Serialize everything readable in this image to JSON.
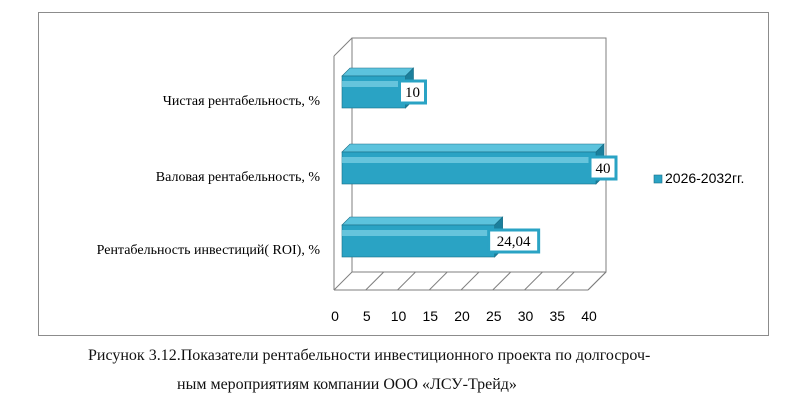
{
  "chart_data": {
    "type": "bar",
    "orientation": "horizontal",
    "style": "3d",
    "categories": [
      "Рентабельность инвестиций( ROI), %",
      "Валовая рентабельность, %",
      "Чистая рентабельность, %"
    ],
    "series": [
      {
        "name": "2026-2032гг.",
        "values": [
          24.04,
          40,
          10
        ],
        "color": "#2aa3c4"
      }
    ],
    "data_labels": [
      "24,04",
      "40",
      "10"
    ],
    "xlim": [
      0,
      40
    ],
    "x_ticks": [
      "0",
      "5",
      "10",
      "15",
      "20",
      "25",
      "30",
      "35",
      "40"
    ],
    "legend_position": "right",
    "grid": false
  },
  "caption": {
    "line1": "Рисунок 3.12.Показатели рентабельности инвестиционного проекта по долгосроч-",
    "line2": "ным мероприятиям компании ООО «ЛСУ-Трейд»"
  }
}
